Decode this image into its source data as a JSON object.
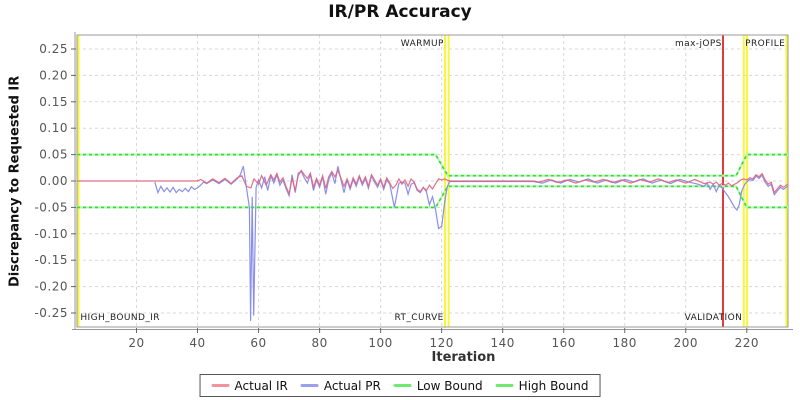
{
  "title": "IR/PR Accuracy",
  "y_axis": {
    "label": "Discrepancy to Requested IR"
  },
  "x_axis": {
    "label": "Iteration"
  },
  "legend": [
    {
      "label": "Actual IR",
      "color": "#f0939f"
    },
    {
      "label": "Actual PR",
      "color": "#9aa0ef"
    },
    {
      "label": "Low Bound",
      "color": "#70e970"
    },
    {
      "label": "High Bound",
      "color": "#70e970"
    }
  ],
  "colors": {
    "actual_ir": "#e0617f",
    "actual_pr": "#8a8fe8",
    "bound": "#35da35",
    "bound_light": "#baf7ba",
    "grid": "#d8d8d8",
    "border": "#9a9a9a",
    "axis": "#999999",
    "tick": "#666666",
    "tick_label": "#555555",
    "marker_yellow": "#f6f63a",
    "marker_red": "#e23b3b",
    "flag_label": "#222222"
  },
  "chart_data": {
    "type": "line",
    "title": "IR/PR Accuracy",
    "xlabel": "Iteration",
    "ylabel": "Discrepancy to Requested IR",
    "x_min": 0.5,
    "x_max": 233.5,
    "y_min": -0.2765,
    "y_max": 0.2765,
    "x_ticks": [
      20,
      40,
      60,
      80,
      100,
      120,
      140,
      160,
      180,
      200,
      220
    ],
    "y_ticks": [
      0.25,
      0.2,
      0.15,
      0.1,
      0.05,
      0.0,
      -0.05,
      -0.1,
      -0.15,
      -0.2,
      -0.25
    ],
    "grid": true,
    "legend_position": "bottom",
    "vlines": [
      {
        "x": 1.0,
        "color": "yellow"
      },
      {
        "x": 121.1,
        "color": "yellow"
      },
      {
        "x": 122.3,
        "color": "yellow"
      },
      {
        "x": 212.2,
        "color": "red"
      },
      {
        "x": 219.0,
        "color": "yellow"
      },
      {
        "x": 220.1,
        "color": "yellow"
      },
      {
        "x": 233.0,
        "color": "yellow"
      }
    ],
    "flag_labels": [
      {
        "text": "WARMUP",
        "x": 120.7,
        "pos": "top",
        "anchor": "end"
      },
      {
        "text": "max-jOPS",
        "x": 211.8,
        "pos": "top",
        "anchor": "end"
      },
      {
        "text": "PROFILE",
        "x": 232.6,
        "pos": "top",
        "anchor": "end"
      },
      {
        "text": "HIGH_BOUND_IR",
        "x": 1.6,
        "pos": "bottom",
        "anchor": "start"
      },
      {
        "text": "RT_CURVE",
        "x": 120.7,
        "pos": "bottom",
        "anchor": "end"
      },
      {
        "text": "VALIDATION",
        "x": 218.5,
        "pos": "bottom",
        "anchor": "end"
      }
    ],
    "series": [
      {
        "name": "High Bound",
        "role": "bound",
        "points": [
          [
            0.5,
            0.05
          ],
          [
            118,
            0.05
          ],
          [
            122,
            0.01
          ],
          [
            216.5,
            0.01
          ],
          [
            220,
            0.05
          ],
          [
            233.5,
            0.05
          ]
        ]
      },
      {
        "name": "Low Bound",
        "role": "bound",
        "points": [
          [
            0.5,
            -0.05
          ],
          [
            118,
            -0.05
          ],
          [
            122,
            -0.01
          ],
          [
            216.5,
            -0.01
          ],
          [
            220,
            -0.05
          ],
          [
            233.5,
            -0.05
          ]
        ]
      },
      {
        "name": "Actual PR",
        "role": "pr",
        "points": [
          [
            26,
            -0.002
          ],
          [
            27,
            -0.022
          ],
          [
            28,
            -0.01
          ],
          [
            29,
            -0.02
          ],
          [
            30,
            -0.013
          ],
          [
            31,
            -0.021
          ],
          [
            32,
            -0.012
          ],
          [
            33,
            -0.022
          ],
          [
            34,
            -0.016
          ],
          [
            35,
            -0.02
          ],
          [
            36,
            -0.014
          ],
          [
            37,
            -0.02
          ],
          [
            38,
            -0.011
          ],
          [
            39,
            -0.016
          ],
          [
            40,
            -0.013
          ],
          [
            41,
            -0.008
          ],
          [
            42,
            -0.002
          ],
          [
            43,
            -0.005
          ],
          [
            45,
            0.002
          ],
          [
            47,
            -0.005
          ],
          [
            49,
            0.003
          ],
          [
            51,
            -0.006
          ],
          [
            53,
            0.004
          ],
          [
            54,
            0.012
          ],
          [
            55,
            0.028
          ],
          [
            56,
            -0.012
          ],
          [
            57,
            -0.05
          ],
          [
            57.4,
            -0.265
          ],
          [
            57.9,
            -0.03
          ],
          [
            58.4,
            -0.255
          ],
          [
            59.2,
            -0.012
          ],
          [
            60,
            0.002
          ],
          [
            61,
            -0.013
          ],
          [
            62,
            0.008
          ],
          [
            63,
            -0.018
          ],
          [
            64,
            0.01
          ],
          [
            65,
            -0.004
          ],
          [
            66,
            0.012
          ],
          [
            67,
            -0.008
          ],
          [
            68,
            0.002
          ],
          [
            69,
            -0.014
          ],
          [
            70,
            -0.028
          ],
          [
            71,
            0.012
          ],
          [
            72,
            -0.022
          ],
          [
            73,
            0.015
          ],
          [
            74,
            0.018
          ],
          [
            75,
            0.006
          ],
          [
            76,
            -0.004
          ],
          [
            77,
            0.012
          ],
          [
            78,
            -0.018
          ],
          [
            79,
            0.002
          ],
          [
            80,
            -0.012
          ],
          [
            81,
            0.008
          ],
          [
            82,
            -0.025
          ],
          [
            83,
            0.002
          ],
          [
            84,
            0.015
          ],
          [
            85,
            -0.005
          ],
          [
            86,
            0.028
          ],
          [
            87,
            0.002
          ],
          [
            88,
            -0.022
          ],
          [
            89,
            0.002
          ],
          [
            90,
            -0.016
          ],
          [
            91,
            0.003
          ],
          [
            92,
            -0.01
          ],
          [
            93,
            0.008
          ],
          [
            94,
            -0.008
          ],
          [
            95,
            0.005
          ],
          [
            96,
            -0.014
          ],
          [
            97,
            0.01
          ],
          [
            98,
            -0.002
          ],
          [
            99,
            -0.012
          ],
          [
            100,
            0.002
          ],
          [
            101,
            -0.016
          ],
          [
            102,
            0.002
          ],
          [
            103,
            -0.006
          ],
          [
            104.5,
            -0.05
          ],
          [
            106,
            -0.004
          ],
          [
            107,
            -0.002
          ],
          [
            108,
            -0.004
          ],
          [
            109,
            -0.025
          ],
          [
            110,
            -0.006
          ],
          [
            111,
            -0.003
          ],
          [
            112,
            -0.018
          ],
          [
            113,
            -0.022
          ],
          [
            114,
            -0.012
          ],
          [
            115,
            -0.02
          ],
          [
            116,
            -0.045
          ],
          [
            117,
            -0.03
          ],
          [
            118,
            -0.055
          ],
          [
            119,
            -0.09
          ],
          [
            120,
            -0.086
          ],
          [
            121,
            -0.04
          ],
          [
            121.8,
            -0.012
          ],
          [
            122.5,
            -0.002
          ],
          [
            123,
            -0.001
          ],
          [
            150,
            -0.001
          ],
          [
            153,
            -0.004
          ],
          [
            156,
            0.002
          ],
          [
            159,
            -0.004
          ],
          [
            162,
            0.003
          ],
          [
            165,
            -0.002
          ],
          [
            168,
            0.004
          ],
          [
            171,
            -0.004
          ],
          [
            174,
            0.002
          ],
          [
            177,
            -0.004
          ],
          [
            180,
            0.003
          ],
          [
            183,
            -0.002
          ],
          [
            186,
            0.004
          ],
          [
            189,
            -0.004
          ],
          [
            192,
            0.002
          ],
          [
            195,
            -0.005
          ],
          [
            198,
            0.003
          ],
          [
            201,
            -0.002
          ],
          [
            204,
            -0.006
          ],
          [
            206,
            -0.01
          ],
          [
            207,
            -0.004
          ],
          [
            208,
            -0.016
          ],
          [
            209,
            -0.006
          ],
          [
            210,
            -0.02
          ],
          [
            211,
            -0.008
          ],
          [
            212,
            -0.014
          ],
          [
            213,
            -0.022
          ],
          [
            214,
            -0.03
          ],
          [
            215,
            -0.04
          ],
          [
            216,
            -0.05
          ],
          [
            216.8,
            -0.055
          ],
          [
            217.5,
            -0.045
          ],
          [
            218.3,
            -0.02
          ],
          [
            219,
            -0.01
          ],
          [
            219.6,
            -0.004
          ],
          [
            220,
            -0.002
          ],
          [
            221,
            0.003
          ],
          [
            222,
            0.001
          ],
          [
            223,
            0.009
          ],
          [
            224,
            0.005
          ],
          [
            225,
            0.011
          ],
          [
            226,
            -0.002
          ],
          [
            227,
            -0.01
          ],
          [
            228,
            -0.006
          ],
          [
            229,
            -0.026
          ],
          [
            230,
            -0.019
          ],
          [
            231,
            -0.012
          ],
          [
            232,
            -0.016
          ],
          [
            233.4,
            -0.01
          ]
        ]
      },
      {
        "name": "Actual IR",
        "role": "ir",
        "points": [
          [
            0.5,
            0
          ],
          [
            26,
            0
          ],
          [
            40,
            0
          ],
          [
            41,
            0.003
          ],
          [
            43,
            -0.004
          ],
          [
            45,
            0.004
          ],
          [
            47,
            -0.003
          ],
          [
            49,
            0.005
          ],
          [
            51,
            -0.005
          ],
          [
            53,
            0.006
          ],
          [
            54.5,
            0.01
          ],
          [
            56,
            -0.01
          ],
          [
            57.5,
            -0.013
          ],
          [
            58.5,
            0.004
          ],
          [
            60,
            -0.006
          ],
          [
            61,
            0.01
          ],
          [
            62.5,
            -0.008
          ],
          [
            64,
            0.012
          ],
          [
            65,
            0.002
          ],
          [
            66,
            0.014
          ],
          [
            67,
            -0.002
          ],
          [
            68,
            0.006
          ],
          [
            69,
            -0.01
          ],
          [
            70,
            -0.024
          ],
          [
            71,
            0.005
          ],
          [
            72,
            -0.018
          ],
          [
            73,
            0.01
          ],
          [
            74,
            0.02
          ],
          [
            75,
            0.012
          ],
          [
            76,
            0.005
          ],
          [
            77,
            0.015
          ],
          [
            78,
            -0.012
          ],
          [
            79,
            0.005
          ],
          [
            80,
            -0.008
          ],
          [
            81,
            0.01
          ],
          [
            82,
            -0.014
          ],
          [
            83,
            0.008
          ],
          [
            84,
            0.018
          ],
          [
            85,
            0.008
          ],
          [
            86,
            0.02
          ],
          [
            87,
            0.005
          ],
          [
            88,
            -0.01
          ],
          [
            89,
            0.004
          ],
          [
            90,
            -0.012
          ],
          [
            91,
            0.006
          ],
          [
            92,
            -0.006
          ],
          [
            93,
            0.01
          ],
          [
            94,
            -0.004
          ],
          [
            95,
            0.008
          ],
          [
            96,
            -0.01
          ],
          [
            97,
            0.012
          ],
          [
            98,
            0.002
          ],
          [
            99,
            -0.008
          ],
          [
            100,
            0.004
          ],
          [
            101,
            -0.012
          ],
          [
            102,
            0.006
          ],
          [
            103,
            -0.004
          ],
          [
            104,
            -0.014
          ],
          [
            105,
            -0.008
          ],
          [
            106,
            0.004
          ],
          [
            107,
            -0.006
          ],
          [
            108,
            0.002
          ],
          [
            109,
            -0.01
          ],
          [
            110,
            0.004
          ],
          [
            111,
            -0.002
          ],
          [
            112,
            -0.016
          ],
          [
            113,
            -0.02
          ],
          [
            114,
            -0.012
          ],
          [
            115,
            -0.018
          ],
          [
            116,
            -0.008
          ],
          [
            117,
            -0.015
          ],
          [
            118,
            -0.005
          ],
          [
            119,
            0.004
          ],
          [
            120,
            0.002
          ],
          [
            121,
            0.004
          ],
          [
            122,
            0.001
          ],
          [
            123,
            0
          ],
          [
            150,
            0
          ],
          [
            152,
            -0.002
          ],
          [
            155,
            0.003
          ],
          [
            158,
            -0.003
          ],
          [
            161,
            0.002
          ],
          [
            164,
            -0.004
          ],
          [
            167,
            0.002
          ],
          [
            170,
            -0.002
          ],
          [
            173,
            0.003
          ],
          [
            176,
            -0.003
          ],
          [
            179,
            0.002
          ],
          [
            182,
            -0.004
          ],
          [
            185,
            0.003
          ],
          [
            188,
            -0.002
          ],
          [
            191,
            0.004
          ],
          [
            194,
            -0.003
          ],
          [
            197,
            0.002
          ],
          [
            200,
            -0.004
          ],
          [
            203,
            0.003
          ],
          [
            206,
            -0.005
          ],
          [
            208,
            -0.002
          ],
          [
            209,
            -0.006
          ],
          [
            210,
            -0.002
          ],
          [
            211,
            -0.008
          ],
          [
            212,
            -0.004
          ],
          [
            213,
            -0.008
          ],
          [
            214,
            -0.004
          ],
          [
            215,
            -0.009
          ],
          [
            216,
            -0.006
          ],
          [
            217,
            -0.003
          ],
          [
            218,
            0.002
          ],
          [
            219,
            0.004
          ],
          [
            220,
            0.002
          ],
          [
            221,
            0.006
          ],
          [
            222,
            0.004
          ],
          [
            223,
            0.012
          ],
          [
            224,
            0.008
          ],
          [
            225,
            0.014
          ],
          [
            226,
            0.002
          ],
          [
            227,
            -0.006
          ],
          [
            228,
            -0.002
          ],
          [
            229,
            -0.022
          ],
          [
            230,
            -0.015
          ],
          [
            231,
            -0.008
          ],
          [
            232,
            -0.012
          ],
          [
            233.4,
            -0.006
          ]
        ]
      }
    ]
  }
}
